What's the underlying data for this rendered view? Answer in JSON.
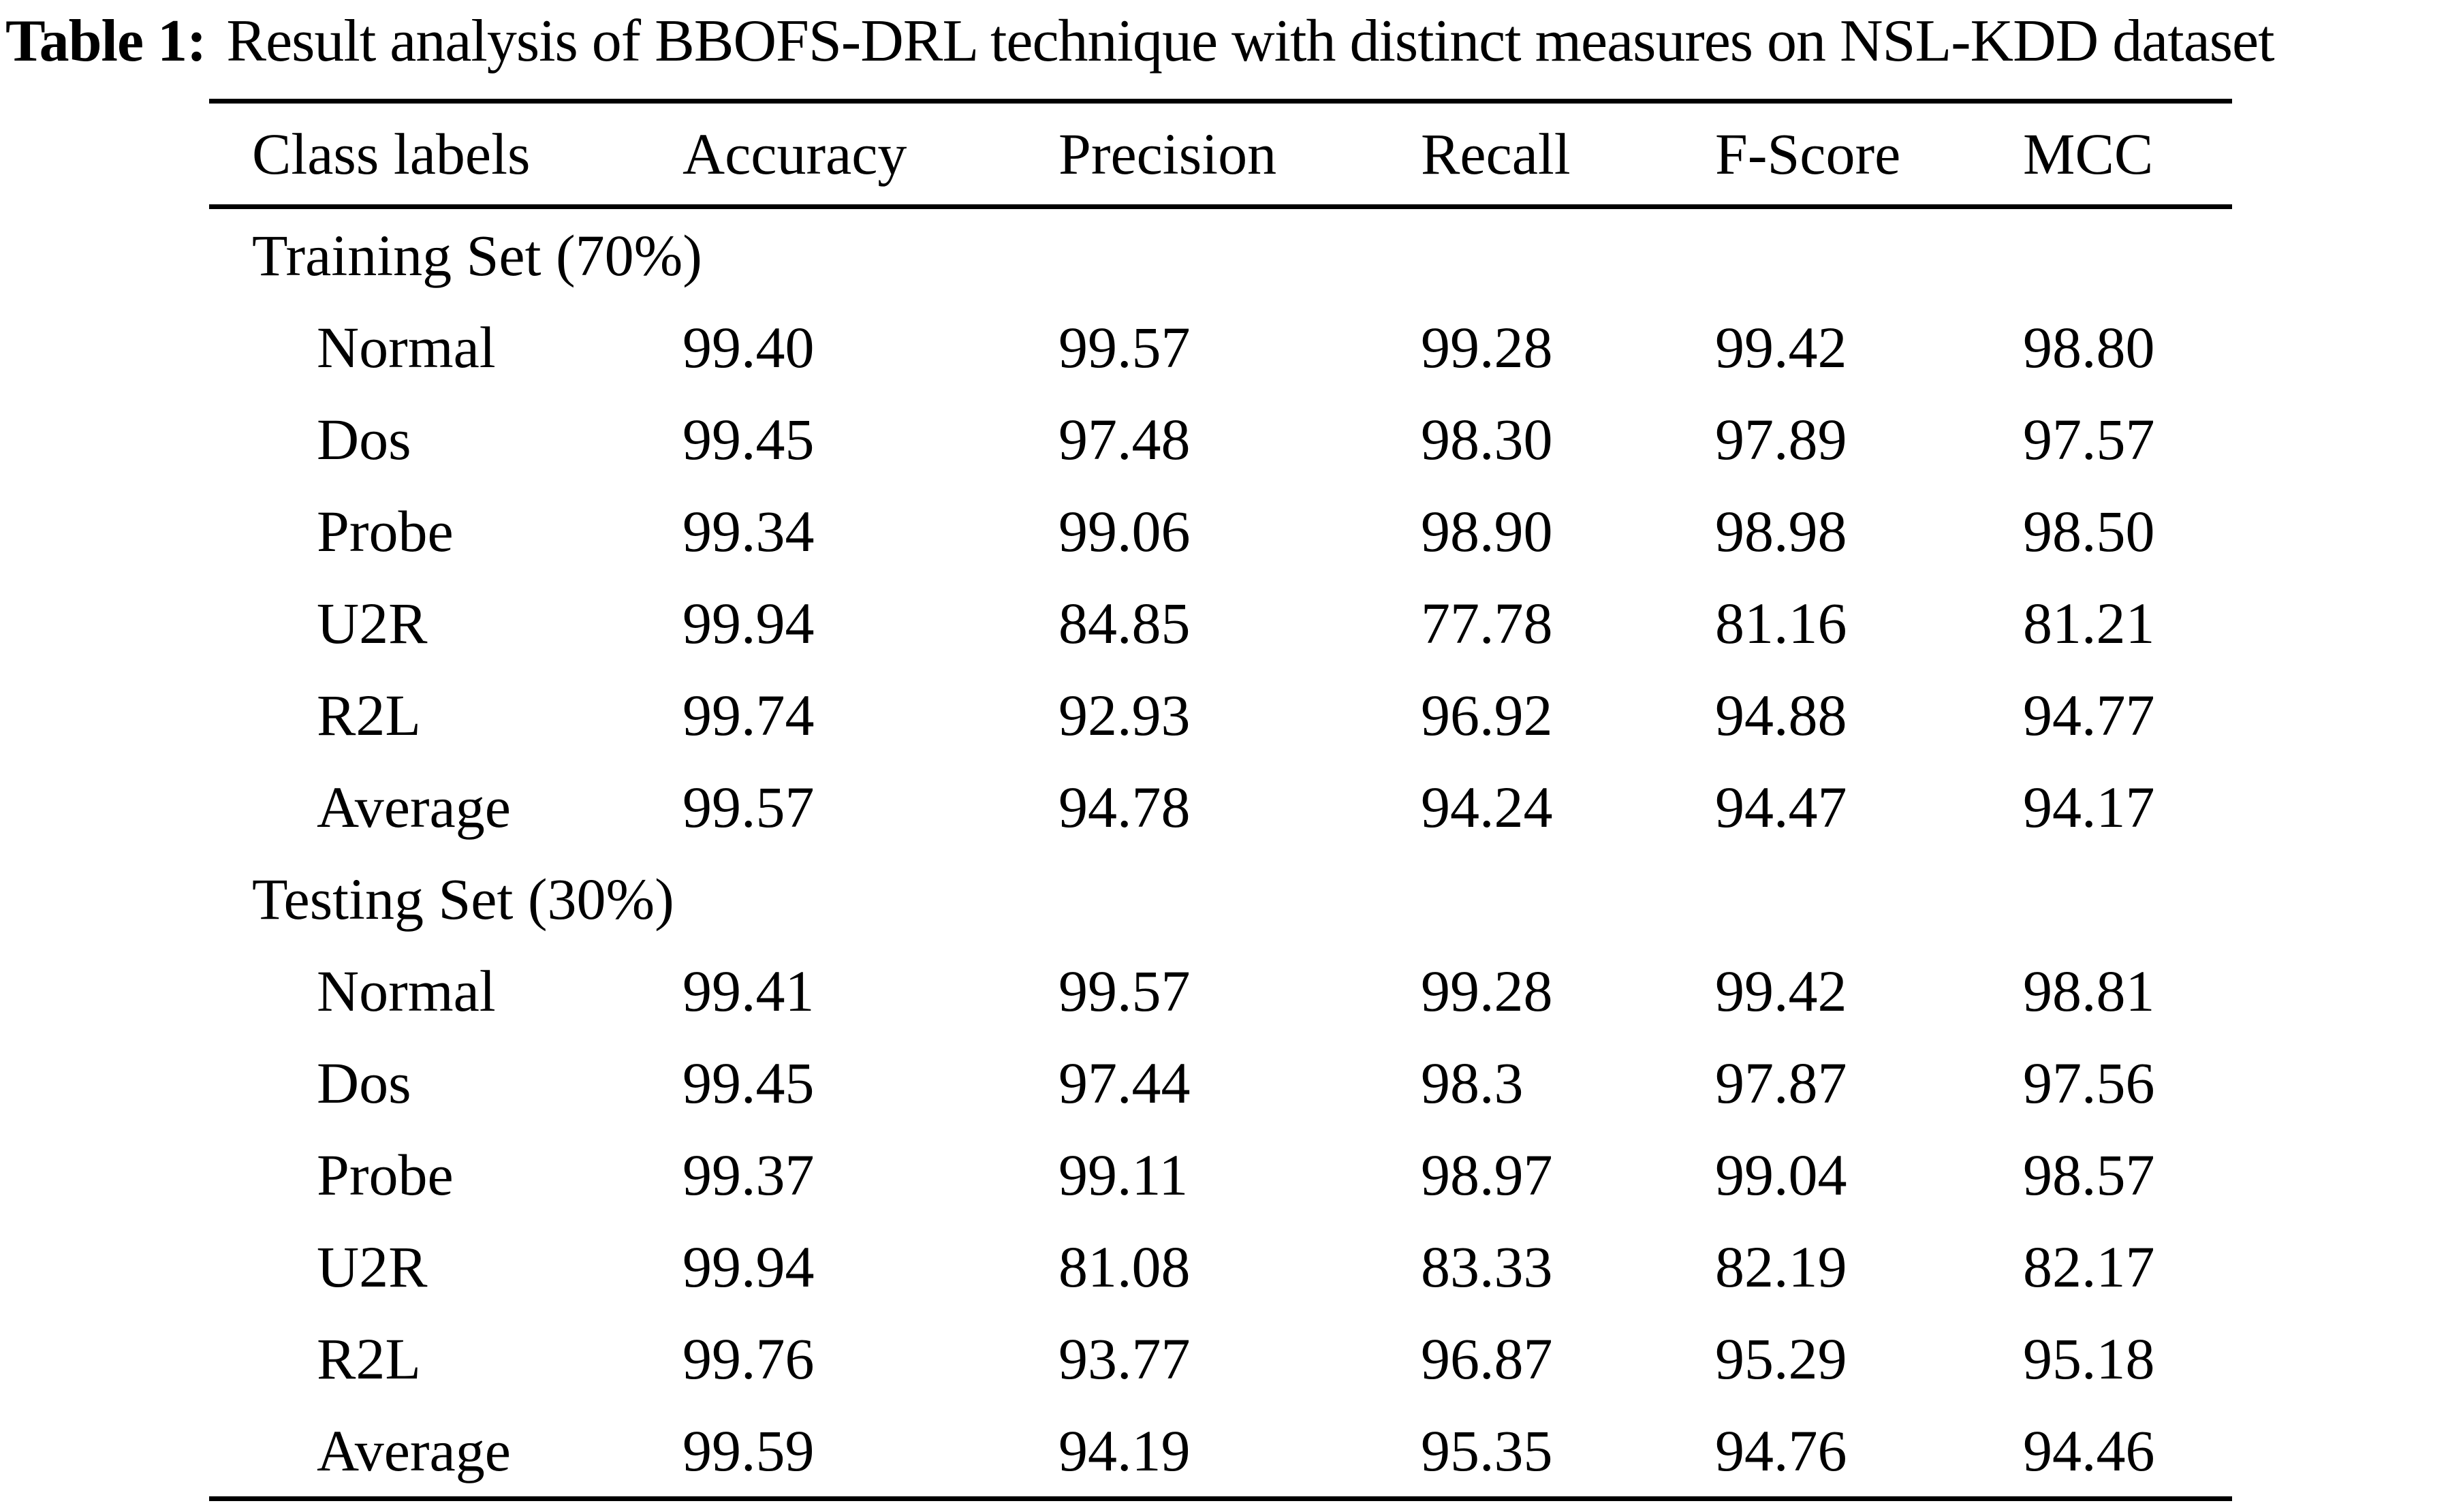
{
  "title": {
    "label": "Table 1:",
    "text": "Result analysis of BBOFS-DRL technique with distinct measures on NSL-KDD dataset"
  },
  "table": {
    "columns": [
      "Class labels",
      "Accuracy",
      "Precision",
      "Recall",
      "F-Score",
      "MCC"
    ],
    "sections": [
      {
        "label": "Training Set (70%)",
        "rows": [
          {
            "class": "Normal",
            "values": [
              "99.40",
              "99.57",
              "99.28",
              "99.42",
              "98.80"
            ]
          },
          {
            "class": "Dos",
            "values": [
              "99.45",
              "97.48",
              "98.30",
              "97.89",
              "97.57"
            ]
          },
          {
            "class": "Probe",
            "values": [
              "99.34",
              "99.06",
              "98.90",
              "98.98",
              "98.50"
            ]
          },
          {
            "class": "U2R",
            "values": [
              "99.94",
              "84.85",
              "77.78",
              "81.16",
              "81.21"
            ]
          },
          {
            "class": "R2L",
            "values": [
              "99.74",
              "92.93",
              "96.92",
              "94.88",
              "94.77"
            ]
          },
          {
            "class": "Average",
            "values": [
              "99.57",
              "94.78",
              "94.24",
              "94.47",
              "94.17"
            ]
          }
        ]
      },
      {
        "label": "Testing Set (30%)",
        "rows": [
          {
            "class": "Normal",
            "values": [
              "99.41",
              "99.57",
              "99.28",
              "99.42",
              "98.81"
            ]
          },
          {
            "class": "Dos",
            "values": [
              "99.45",
              "97.44",
              "98.3",
              "97.87",
              "97.56"
            ]
          },
          {
            "class": "Probe",
            "values": [
              "99.37",
              "99.11",
              "98.97",
              "99.04",
              "98.57"
            ]
          },
          {
            "class": "U2R",
            "values": [
              "99.94",
              "81.08",
              "83.33",
              "82.19",
              "82.17"
            ]
          },
          {
            "class": "R2L",
            "values": [
              "99.76",
              "93.77",
              "96.87",
              "95.29",
              "95.18"
            ]
          },
          {
            "class": "Average",
            "values": [
              "99.59",
              "94.19",
              "95.35",
              "94.76",
              "94.46"
            ]
          }
        ]
      }
    ]
  }
}
